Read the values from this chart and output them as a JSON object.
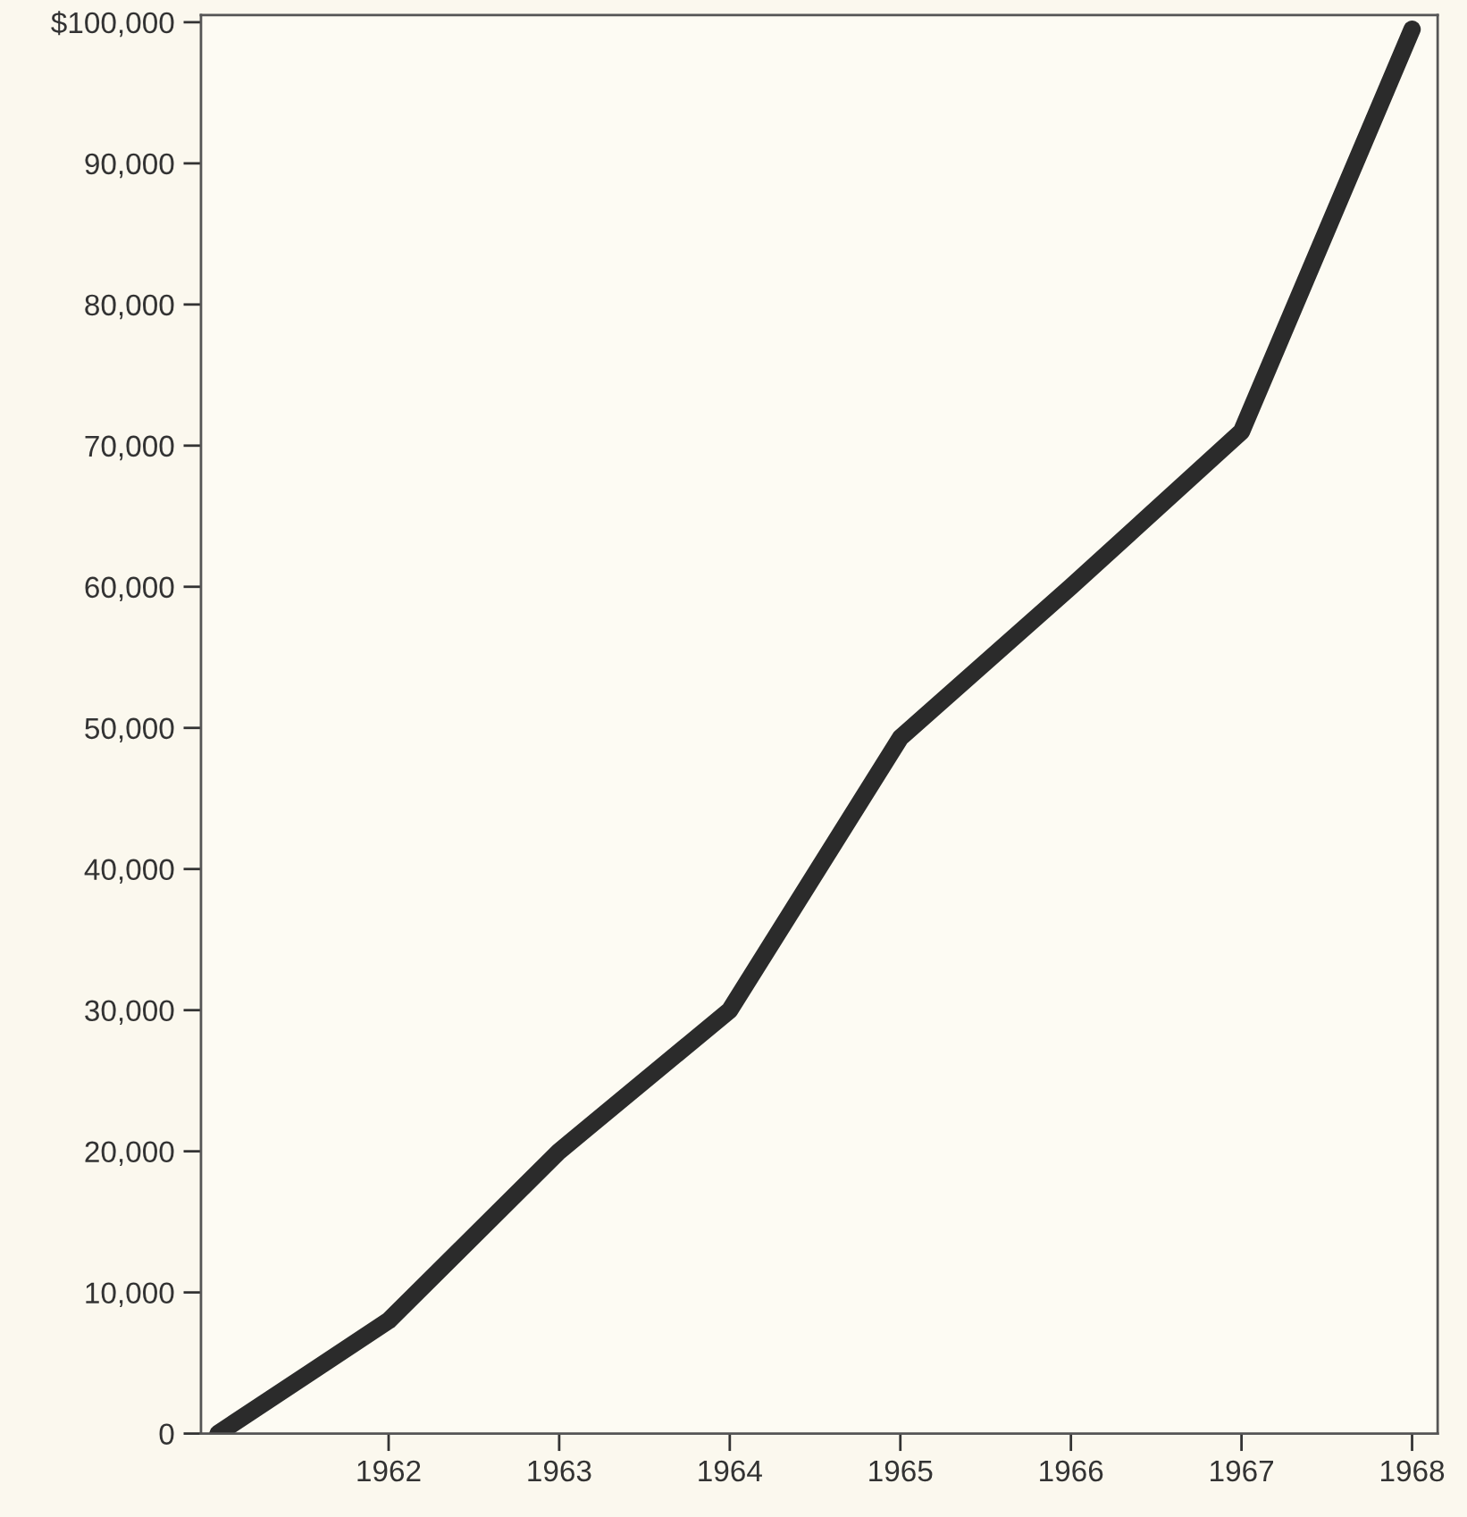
{
  "chart_data": {
    "type": "line",
    "x": [
      1961,
      1962,
      1963,
      1964,
      1965,
      1966,
      1967,
      1968
    ],
    "series": [
      {
        "color": "#2b2b2b",
        "values": [
          0,
          8000,
          20000,
          30000,
          49300,
          60000,
          71000,
          99500
        ]
      }
    ],
    "xlim": [
      1960.9,
      1968.15
    ],
    "xticks": [
      1962,
      1963,
      1964,
      1965,
      1966,
      1967,
      1968
    ],
    "ylim": [
      0,
      100500
    ],
    "yticks": [
      {
        "value": 0,
        "label": "0"
      },
      {
        "value": 10000,
        "label": "10,000"
      },
      {
        "value": 20000,
        "label": "20,000"
      },
      {
        "value": 30000,
        "label": "30,000"
      },
      {
        "value": 40000,
        "label": "40,000"
      },
      {
        "value": 50000,
        "label": "50,000"
      },
      {
        "value": 60000,
        "label": "60,000"
      },
      {
        "value": 70000,
        "label": "70,000"
      },
      {
        "value": 80000,
        "label": "80,000"
      },
      {
        "value": 90000,
        "label": "90,000"
      },
      {
        "value": 100000,
        "label": "$100,000"
      }
    ],
    "grid": false,
    "legend": false,
    "marker": "none",
    "line_style": "solid"
  }
}
